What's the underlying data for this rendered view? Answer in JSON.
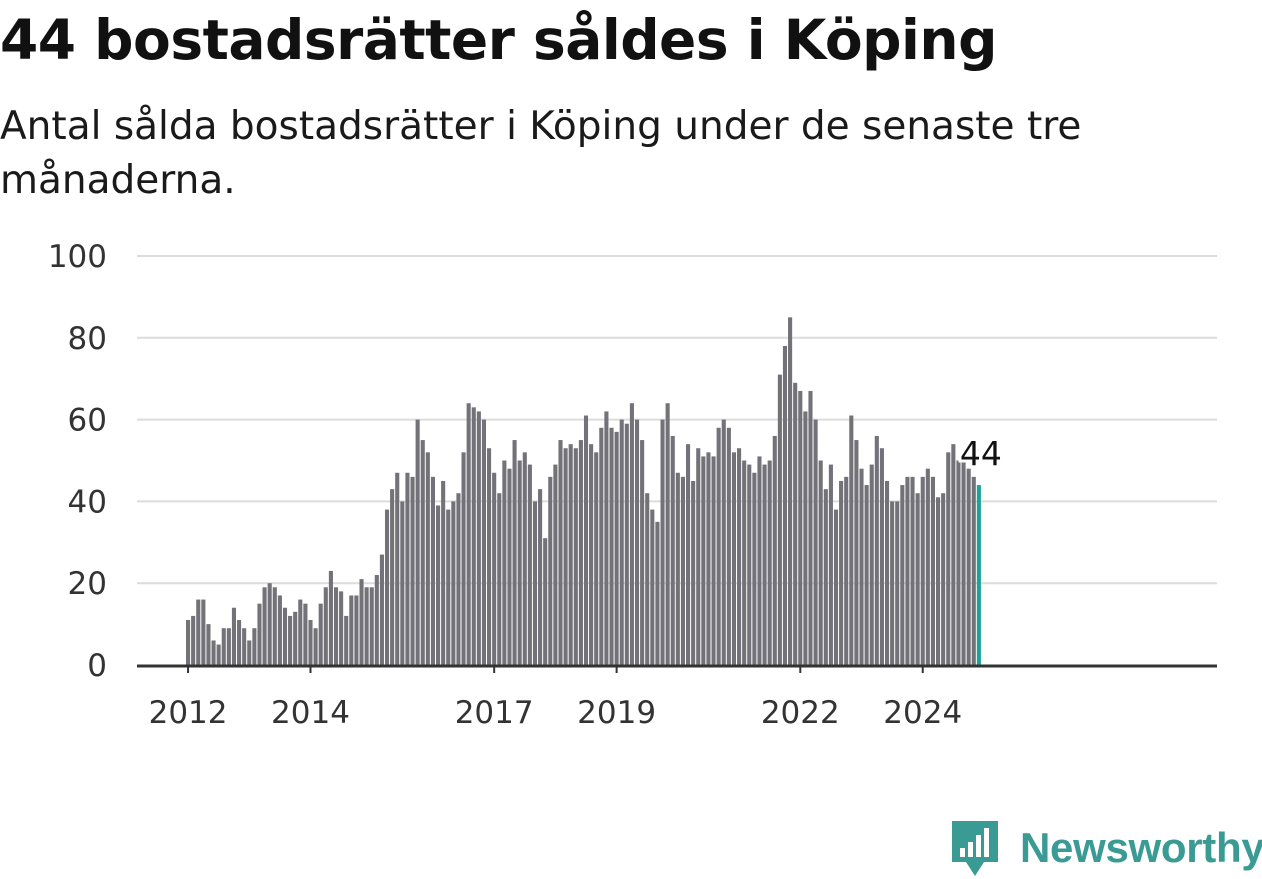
{
  "title": "44 bostadsrätter såldes i Köping",
  "subtitle": "Antal sålda bostadsrätter i Köping under de senaste tre månaderna.",
  "brand": {
    "name": "Newsworthy",
    "color": "#3a9a94",
    "icon": "newsworthy-logo-icon"
  },
  "colors": {
    "bar": "#737278",
    "highlight": "#1ba39a",
    "grid": "#dcdcdc",
    "axis": "#333333"
  },
  "chart_data": {
    "type": "bar",
    "title": "44 bostadsrätter såldes i Köping",
    "xlabel": "",
    "ylabel": "",
    "ylim": [
      0,
      100
    ],
    "yticks": [
      0,
      20,
      40,
      60,
      80,
      100
    ],
    "grid": true,
    "x_start": "2012-01",
    "x_ticks": [
      {
        "label": "2012",
        "month": "2012-01"
      },
      {
        "label": "2014",
        "month": "2014-01"
      },
      {
        "label": "2017",
        "month": "2017-01"
      },
      {
        "label": "2019",
        "month": "2019-01"
      },
      {
        "label": "2022",
        "month": "2022-01"
      },
      {
        "label": "2024",
        "month": "2024-01"
      }
    ],
    "values": [
      11,
      12,
      16,
      16,
      10,
      6,
      5,
      9,
      9,
      14,
      11,
      9,
      6,
      9,
      15,
      19,
      20,
      19,
      17,
      14,
      12,
      13,
      16,
      15,
      11,
      9,
      15,
      19,
      23,
      19,
      18,
      12,
      17,
      17,
      21,
      19,
      19,
      22,
      27,
      38,
      43,
      47,
      40,
      47,
      46,
      60,
      55,
      52,
      46,
      39,
      45,
      38,
      40,
      42,
      52,
      64,
      63,
      62,
      60,
      53,
      47,
      42,
      50,
      48,
      55,
      50,
      52,
      49,
      40,
      43,
      31,
      46,
      49,
      55,
      53,
      54,
      53,
      55,
      61,
      54,
      52,
      58,
      62,
      58,
      57,
      60,
      59,
      64,
      60,
      55,
      42,
      38,
      35,
      60,
      64,
      56,
      47,
      46,
      54,
      45,
      53,
      51,
      52,
      51,
      58,
      60,
      58,
      52,
      53,
      50,
      49,
      47,
      51,
      49,
      50,
      56,
      71,
      78,
      85,
      69,
      67,
      62,
      67,
      60,
      50,
      43,
      49,
      38,
      45,
      46,
      61,
      55,
      48,
      44,
      49,
      56,
      53,
      45,
      40,
      40,
      44,
      46,
      46,
      42,
      46,
      48,
      46,
      41,
      42,
      52,
      54,
      50,
      50,
      48,
      46,
      44
    ],
    "highlight_last": true,
    "last_label": "44"
  }
}
